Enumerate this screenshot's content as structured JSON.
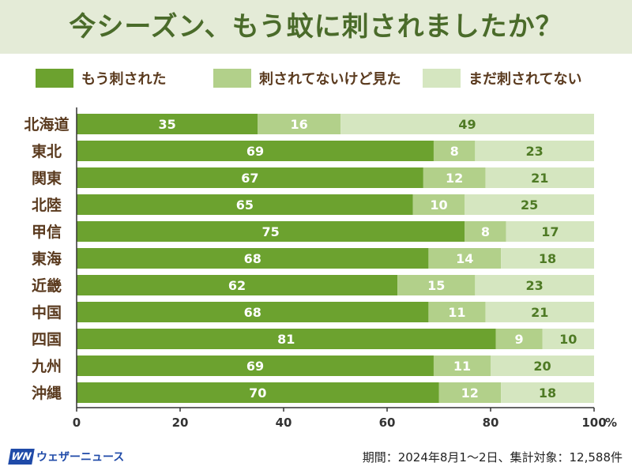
{
  "title": "今シーズン、もう蚊に刺されましたか？",
  "legend": [
    {
      "label": "もう刺された",
      "color": "#6ca22f"
    },
    {
      "label": "刺されてないけど見た",
      "color": "#b2d08a"
    },
    {
      "label": "まだ刺されてない",
      "color": "#d5e6c0"
    }
  ],
  "chart_data": {
    "type": "bar",
    "orientation": "horizontal",
    "stacked": true,
    "categories": [
      "北海道",
      "東北",
      "関東",
      "北陸",
      "甲信",
      "東海",
      "近畿",
      "中国",
      "四国",
      "九州",
      "沖縄"
    ],
    "series": [
      {
        "name": "もう刺された",
        "values": [
          35,
          69,
          67,
          65,
          75,
          68,
          62,
          68,
          81,
          69,
          70
        ]
      },
      {
        "name": "刺されてないけど見た",
        "values": [
          16,
          8,
          12,
          10,
          8,
          14,
          15,
          11,
          9,
          11,
          12
        ]
      },
      {
        "name": "まだ刺されてない",
        "values": [
          49,
          23,
          21,
          25,
          17,
          18,
          23,
          21,
          10,
          20,
          18
        ]
      }
    ],
    "xlim": [
      0,
      100
    ],
    "xticks": [
      "0",
      "20",
      "40",
      "60",
      "80",
      "100"
    ],
    "xunit": "%",
    "grid": false,
    "legend_position": "top"
  },
  "footer": {
    "logo_mark": "WN",
    "logo_text": "ウェザーニュース",
    "note": "期間：2024年8月1～2日、集計対象：12,588件"
  }
}
